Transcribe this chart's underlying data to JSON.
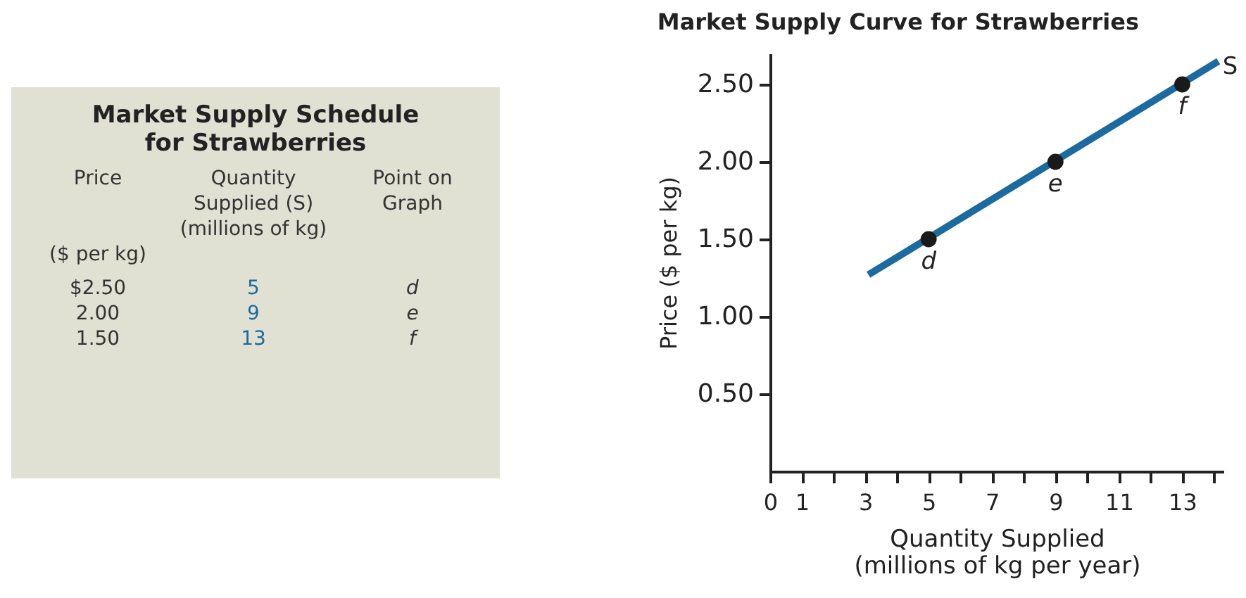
{
  "chart_data": [
    {
      "type": "other",
      "title": "Market Supply Schedule for Strawberries",
      "annotations": [
        "Price\n\n\n($ per kg)",
        "Quantity Supplied (S) (millions of kg)",
        "Point on Graph",
        "$2.50",
        "5",
        "d",
        "2.00",
        "9",
        "e",
        "1.50",
        "13",
        "f"
      ]
    },
    {
      "type": "line",
      "title": "Market Supply Curve for Strawberries",
      "xlabel": "Quantity Supplied\n(millions of kg per year)",
      "ylabel": "Price  ($ per kg)",
      "xlim": [
        0,
        14.3
      ],
      "ylim": [
        0,
        2.7
      ],
      "xticks": [
        0,
        1,
        {
          "value": 2,
          "label": null
        },
        3,
        {
          "value": 4,
          "label": null
        },
        5,
        {
          "value": 6,
          "label": null
        },
        7,
        {
          "value": 8,
          "label": null
        },
        9,
        {
          "value": 10,
          "label": null
        },
        11,
        {
          "value": 12,
          "label": null
        },
        13,
        {
          "value": 14,
          "label": null
        }
      ],
      "yticks": [
        {
          "value": 0.5,
          "label": "0.50"
        },
        {
          "value": 1,
          "label": "1.00"
        },
        {
          "value": 1.5,
          "label": "1.50"
        },
        {
          "value": 2,
          "label": "2.00"
        },
        {
          "value": 2.5,
          "label": "2.50"
        }
      ],
      "grid": false,
      "series": [
        {
          "name": "S",
          "type": "line",
          "color": "#1b6aa0",
          "marker": "none",
          "x": [
            3.1,
            14.14
          ],
          "values": [
            1.27,
            2.65
          ]
        },
        {
          "type": "scatter",
          "color": "#1a1a1a",
          "marker": "circle",
          "x": [
            5,
            9,
            13
          ],
          "values": [
            1.5,
            2,
            2.5
          ]
        }
      ],
      "annotations": [
        {
          "text": "d",
          "x": 5,
          "y": 1.5
        },
        {
          "text": "e",
          "x": 9,
          "y": 2
        },
        {
          "text": "f",
          "x": 13,
          "y": 2.5
        }
      ]
    }
  ]
}
